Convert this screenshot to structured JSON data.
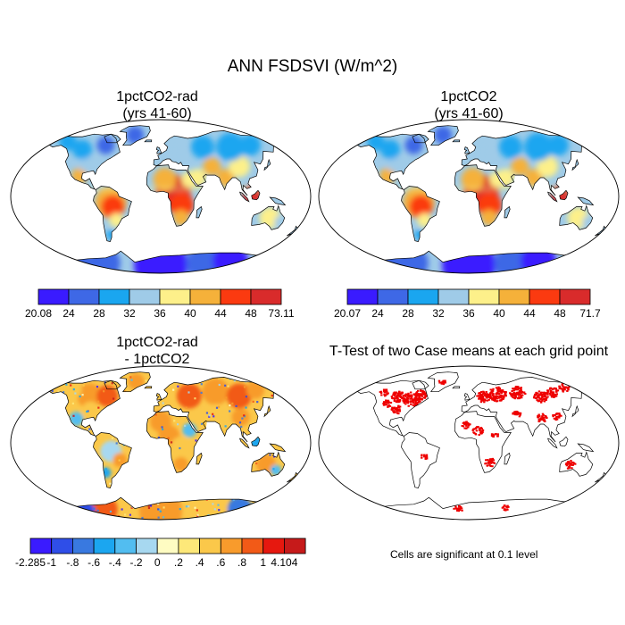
{
  "title": "ANN FSDSVI (W/m^2)",
  "panels": [
    {
      "id": "rad",
      "title_line1": "1pctCO2-rad",
      "title_line2": "(yrs 41-60)"
    },
    {
      "id": "ctl",
      "title_line1": "1pctCO2",
      "title_line2": "(yrs 41-60)"
    },
    {
      "id": "diff",
      "title_line1": "1pctCO2-rad",
      "title_line2": "- 1pctCO2"
    },
    {
      "id": "ttest",
      "title_line1": "T-Test of two Case means at each grid point",
      "title_line2": ""
    }
  ],
  "colorbars": {
    "rad": {
      "labels": [
        "20.08",
        "24",
        "28",
        "32",
        "36",
        "40",
        "44",
        "48",
        "73.11"
      ],
      "colors": [
        "#3a1bff",
        "#3e68e6",
        "#1aa6f0",
        "#9fcbe8",
        "#fdf08a",
        "#f5b13a",
        "#fb3a10",
        "#d92b2b"
      ]
    },
    "ctl": {
      "labels": [
        "20.07",
        "24",
        "28",
        "32",
        "36",
        "40",
        "44",
        "48",
        "71.7"
      ],
      "colors": [
        "#3a1bff",
        "#3e68e6",
        "#1aa6f0",
        "#9fcbe8",
        "#fdf08a",
        "#f5b13a",
        "#fb3a10",
        "#d92b2b"
      ]
    },
    "diff": {
      "labels": [
        "-2.285",
        "-1",
        "-.8",
        "-.6",
        "-.4",
        "-.2",
        "0",
        ".2",
        ".4",
        ".6",
        ".8",
        "1",
        "4.104"
      ],
      "colors": [
        "#3a1bff",
        "#2f4ee8",
        "#3979e0",
        "#1ba6f0",
        "#52bdf0",
        "#a7d8f0",
        "#fefcc2",
        "#fde879",
        "#fbc84a",
        "#f89b2c",
        "#f25a17",
        "#e6180f",
        "#c61a1a"
      ]
    }
  },
  "significance_note": "Cells are significant at 0.1 level",
  "colors": {
    "significant": "#ee0000",
    "ocean": "#ffffff"
  }
}
